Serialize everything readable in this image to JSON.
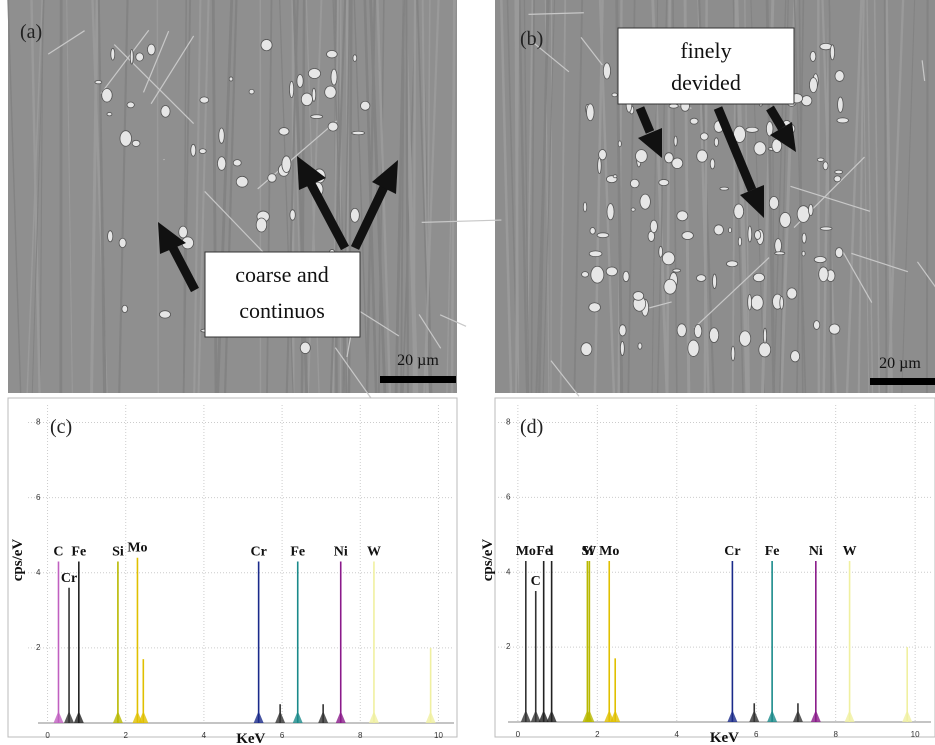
{
  "panels": [
    {
      "label": "(a)",
      "annotation": [
        "coarse and",
        "continuos"
      ],
      "scale_bar": "20 µm"
    },
    {
      "label": "(b)",
      "annotation": [
        "finely",
        "devided"
      ],
      "scale_bar": "20 µm"
    }
  ],
  "spectra": [
    {
      "label": "(c)",
      "y_label": "cps/eV",
      "x_label": "KeV",
      "xlim": [
        -0.5,
        10.5
      ],
      "ylim": [
        0,
        8.6
      ],
      "xticks": [
        0,
        2,
        4,
        6,
        8,
        10
      ],
      "yticks": [
        2,
        4,
        6,
        8
      ],
      "peaks": [
        {
          "x": 0.28,
          "height": 4.3,
          "color": "#c060c0",
          "label": "C"
        },
        {
          "x": 0.55,
          "height": 3.6,
          "color": "#333333",
          "label": "Cr"
        },
        {
          "x": 0.8,
          "height": 4.3,
          "color": "#222222",
          "label": "Fe"
        },
        {
          "x": 1.8,
          "height": 4.3,
          "color": "#b8b800",
          "label": "Si"
        },
        {
          "x": 2.3,
          "height": 4.4,
          "color": "#e0c000",
          "label": "Mo"
        },
        {
          "x": 2.45,
          "height": 1.7,
          "color": "#e0c000"
        },
        {
          "x": 5.4,
          "height": 4.3,
          "color": "#1a2a8a",
          "label": "Cr"
        },
        {
          "x": 5.95,
          "height": 0.5,
          "color": "#333333"
        },
        {
          "x": 6.4,
          "height": 4.3,
          "color": "#1a8a8a",
          "label": "Fe"
        },
        {
          "x": 7.05,
          "height": 0.5,
          "color": "#333333"
        },
        {
          "x": 7.5,
          "height": 4.3,
          "color": "#8a1a8a",
          "label": "Ni"
        },
        {
          "x": 8.35,
          "height": 4.3,
          "color": "#f0f0a0",
          "label": "W"
        },
        {
          "x": 9.8,
          "height": 2.0,
          "color": "#f0f0a0"
        }
      ]
    },
    {
      "label": "(d)",
      "y_label": "cps/eV",
      "x_label": "KeV",
      "xlim": [
        -0.5,
        10.5
      ],
      "ylim": [
        0,
        8.6
      ],
      "xticks": [
        0,
        2,
        4,
        6,
        8,
        10
      ],
      "yticks": [
        2,
        4,
        6,
        8
      ],
      "peaks": [
        {
          "x": 0.2,
          "height": 4.3,
          "color": "#333333",
          "label": "Mo"
        },
        {
          "x": 0.45,
          "height": 3.5,
          "color": "#333333",
          "label": "C"
        },
        {
          "x": 0.65,
          "height": 4.3,
          "color": "#222222",
          "label": "Fe"
        },
        {
          "x": 0.85,
          "height": 4.3,
          "color": "#222222",
          "label": "l"
        },
        {
          "x": 1.75,
          "height": 4.3,
          "color": "#b8b800",
          "label": "Si"
        },
        {
          "x": 1.8,
          "height": 4.3,
          "color": "#b8b800",
          "label": "W"
        },
        {
          "x": 2.3,
          "height": 4.3,
          "color": "#e0c000",
          "label": "Mo"
        },
        {
          "x": 2.45,
          "height": 1.7,
          "color": "#e0c000"
        },
        {
          "x": 5.4,
          "height": 4.3,
          "color": "#1a2a8a",
          "label": "Cr"
        },
        {
          "x": 5.95,
          "height": 0.5,
          "color": "#333333"
        },
        {
          "x": 6.4,
          "height": 4.3,
          "color": "#1a8a8a",
          "label": "Fe"
        },
        {
          "x": 7.05,
          "height": 0.5,
          "color": "#333333"
        },
        {
          "x": 7.5,
          "height": 4.3,
          "color": "#8a1a8a",
          "label": "Ni"
        },
        {
          "x": 8.35,
          "height": 4.3,
          "color": "#f0f0a0",
          "label": "W"
        },
        {
          "x": 9.8,
          "height": 2.0,
          "color": "#f0f0a0"
        }
      ]
    }
  ]
}
